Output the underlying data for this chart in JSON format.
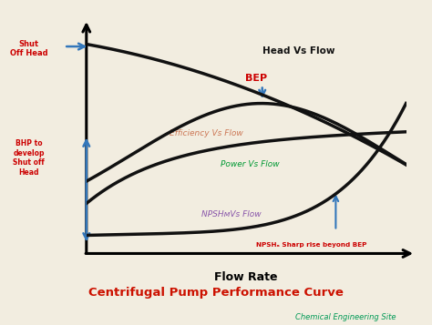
{
  "title": "Centrifugal Pump Performance Curve",
  "subtitle": "Chemical Engineering Site",
  "xlabel": "Flow Rate",
  "bg_color": "#f2ede0",
  "plot_bg": "#ffffff",
  "title_color": "#cc1100",
  "subtitle_color": "#009955",
  "curve_color": "#111111",
  "curve_lw": 2.5,
  "arrow_color": "#3377bb",
  "head_label_color": "#111111",
  "eff_label_color": "#cc7755",
  "power_label_color": "#009933",
  "npshr_label_color": "#8855aa",
  "bep_color": "#cc0000",
  "annot_color": "#cc0000",
  "shut_color": "#cc0000",
  "bhp_color": "#cc0000"
}
